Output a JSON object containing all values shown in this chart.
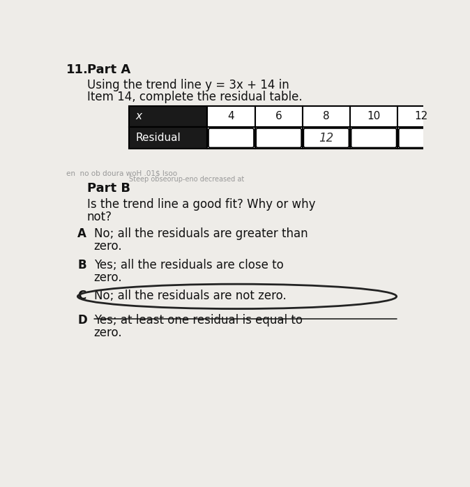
{
  "title_number": "11.",
  "part_a_label": "Part A",
  "part_a_text_line1": "Using the trend line y = 3x + 14 in",
  "part_a_text_line2": "Item 14, complete the residual table.",
  "table_x_values": [
    "4",
    "6",
    "8",
    "10",
    "12"
  ],
  "table_residual_label": "Residual",
  "table_x_label": "x",
  "residual_value_shown": "12",
  "residual_value_index": 2,
  "part_b_label": "Part B",
  "options": [
    {
      "letter": "A",
      "text1": "No; all the residuals are greater than",
      "text2": "zero.",
      "circled": false,
      "strikethrough": false
    },
    {
      "letter": "B",
      "text1": "Yes; all the residuals are close to",
      "text2": "zero.",
      "circled": false,
      "strikethrough": false
    },
    {
      "letter": "C",
      "text1": "No; all the residuals are not zero.",
      "text2": "",
      "circled": true,
      "strikethrough": false
    },
    {
      "letter": "D",
      "text1": "Yes; at least one residual is equal to",
      "text2": "zero.",
      "circled": false,
      "strikethrough": true
    }
  ],
  "page_bg": "#eeece8",
  "table_header_bg": "#1a1a1a",
  "table_header_text": "#ffffff",
  "cell_bg": "#ffffff",
  "border_color": "#000000",
  "text_color": "#111111",
  "faded_text_color": "#999999"
}
